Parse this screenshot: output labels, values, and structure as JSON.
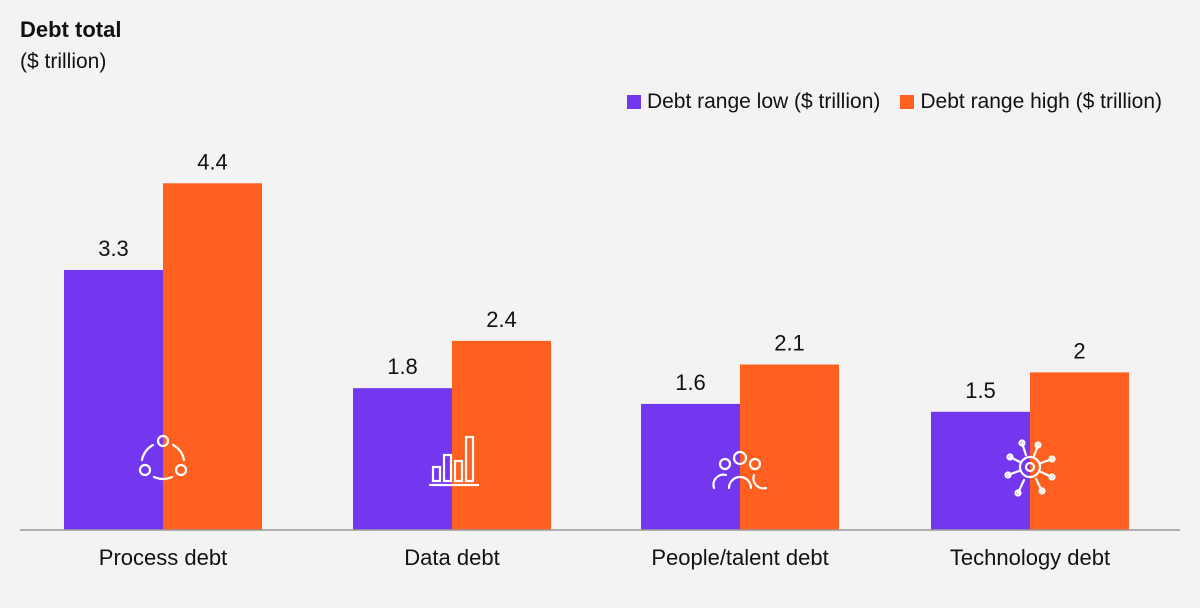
{
  "chart_data": {
    "type": "bar",
    "title": "Debt total",
    "subtitle": "($ trillion)",
    "categories": [
      "Process debt",
      "Data debt",
      "People/talent debt",
      "Technology debt"
    ],
    "category_icons": [
      "process-network-icon",
      "bar-chart-icon",
      "people-icon",
      "technology-gear-circuit-icon"
    ],
    "series": [
      {
        "name": "Debt range low ($ trillion)",
        "color": "#7437F0",
        "values": [
          3.3,
          1.8,
          1.6,
          1.5
        ],
        "labels": [
          "3.3",
          "1.8",
          "1.6",
          "1.5"
        ]
      },
      {
        "name": "Debt range high ($ trillion)",
        "color": "#FF5F1F",
        "values": [
          4.4,
          2.4,
          2.1,
          2
        ],
        "labels": [
          "4.4",
          "2.4",
          "2.1",
          "2"
        ]
      }
    ],
    "xlabel": "",
    "ylabel": "",
    "ylim": [
      0,
      4.4
    ],
    "grid": false,
    "legend": "top-right"
  }
}
